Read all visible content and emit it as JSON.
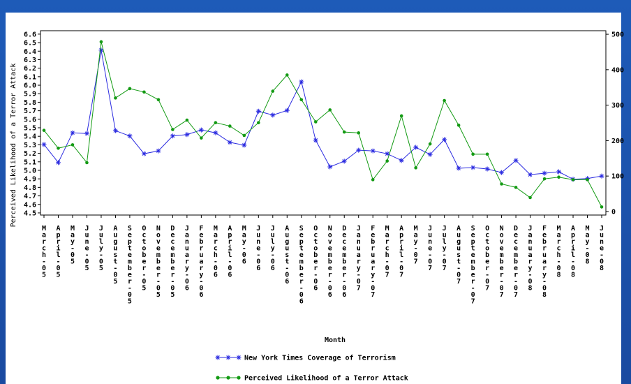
{
  "chart_data": {
    "type": "line",
    "xlabel": "Month",
    "ylabel": "Perceived Likelihood of a Terror Attack",
    "categories": [
      "March-05",
      "April-05",
      "May-05",
      "June-05",
      "July-05",
      "August-05",
      "September-05",
      "October-05",
      "November-05",
      "December-05",
      "January-06",
      "February-06",
      "March-06",
      "April-06",
      "May-06",
      "June-06",
      "July-06",
      "August-06",
      "September-06",
      "October-06",
      "November-06",
      "December-06",
      "January-07",
      "February-07",
      "March-07",
      "April-07",
      "May-07",
      "June-07",
      "July-07",
      "August-07",
      "September-07",
      "October-07",
      "November-07",
      "December-07",
      "January-08",
      "February-08",
      "March-08",
      "April-08",
      "May-08",
      "June-08"
    ],
    "series": [
      {
        "name": "New York Times Coverage of Terrorism",
        "color": "#2a2ae0",
        "marker": "star",
        "axis": "y2",
        "values": [
          189,
          138,
          222,
          220,
          455,
          228,
          213,
          163,
          171,
          213,
          217,
          230,
          222,
          195,
          187,
          283,
          272,
          285,
          366,
          201,
          126,
          142,
          173,
          171,
          163,
          144,
          181,
          161,
          203,
          122,
          124,
          120,
          110,
          144,
          104,
          108,
          112,
          91,
          93,
          100
        ]
      },
      {
        "name": "Perceived Likelihood of a Terror Attack",
        "color": "#139a13",
        "marker": "dot",
        "values": [
          5.47,
          5.26,
          5.3,
          5.09,
          6.51,
          5.85,
          5.96,
          5.92,
          5.83,
          5.48,
          5.59,
          5.38,
          5.56,
          5.52,
          5.41,
          5.56,
          5.93,
          6.12,
          5.83,
          5.57,
          5.71,
          5.45,
          5.44,
          4.89,
          5.11,
          5.64,
          5.03,
          5.31,
          5.82,
          5.53,
          5.19,
          5.19,
          4.84,
          4.8,
          4.68,
          4.9,
          4.92,
          4.89,
          4.89,
          4.57
        ]
      }
    ],
    "ylim": [
      4.475,
      6.64
    ],
    "yticks": [
      4.5,
      4.6,
      4.7,
      4.8,
      4.9,
      {
        "value": 5,
        "label": "5.0"
      },
      5.1,
      5.2,
      5.3,
      5.4,
      5.5,
      5.6,
      5.7,
      5.8,
      5.9,
      {
        "value": 6,
        "label": "6.0"
      },
      6.1,
      6.2,
      6.3,
      6.4,
      6.5,
      6.6
    ],
    "y2lim": [
      -10,
      510
    ],
    "y2ticks": [
      0,
      100,
      200,
      300,
      400,
      500
    ]
  }
}
